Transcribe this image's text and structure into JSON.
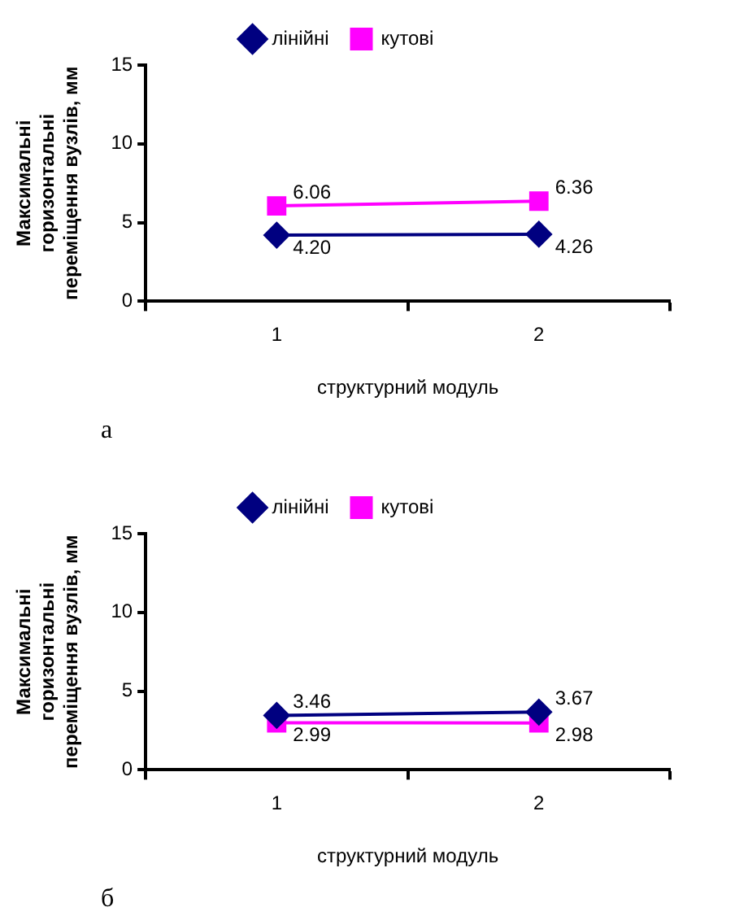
{
  "chart_data": [
    {
      "type": "line",
      "categories": [
        "1",
        "2"
      ],
      "xlabel": "структурний модуль",
      "ylabel": "Максимальні горизонтальні переміщення вузлів, мм",
      "ylim": [
        0,
        15
      ],
      "yticks": [
        0,
        5,
        10,
        15
      ],
      "grid": false,
      "legend": "top",
      "annotations": [
        "а"
      ],
      "series": [
        {
          "name": "лінійні",
          "color": "#000080",
          "marker": "diamond",
          "values": [
            4.2,
            4.26
          ],
          "value_labels": [
            "4.20",
            "4.26"
          ]
        },
        {
          "name": "кутові",
          "color": "#ff00ff",
          "marker": "square",
          "values": [
            6.06,
            6.36
          ],
          "value_labels": [
            "6.06",
            "6.36"
          ]
        }
      ]
    },
    {
      "type": "line",
      "categories": [
        "1",
        "2"
      ],
      "xlabel": "структурний модуль",
      "ylabel": "Максимальні горизонтальні переміщення вузлів, мм",
      "ylim": [
        0,
        15
      ],
      "yticks": [
        0,
        5,
        10,
        15
      ],
      "grid": false,
      "legend": "top",
      "annotations": [
        "б"
      ],
      "series": [
        {
          "name": "лінійні",
          "color": "#000080",
          "marker": "diamond",
          "values": [
            3.46,
            3.67
          ],
          "value_labels": [
            "3.46",
            "3.67"
          ]
        },
        {
          "name": "кутові",
          "color": "#ff00ff",
          "marker": "square",
          "values": [
            2.99,
            2.98
          ],
          "value_labels": [
            "2.99",
            "2.98"
          ]
        }
      ]
    }
  ]
}
